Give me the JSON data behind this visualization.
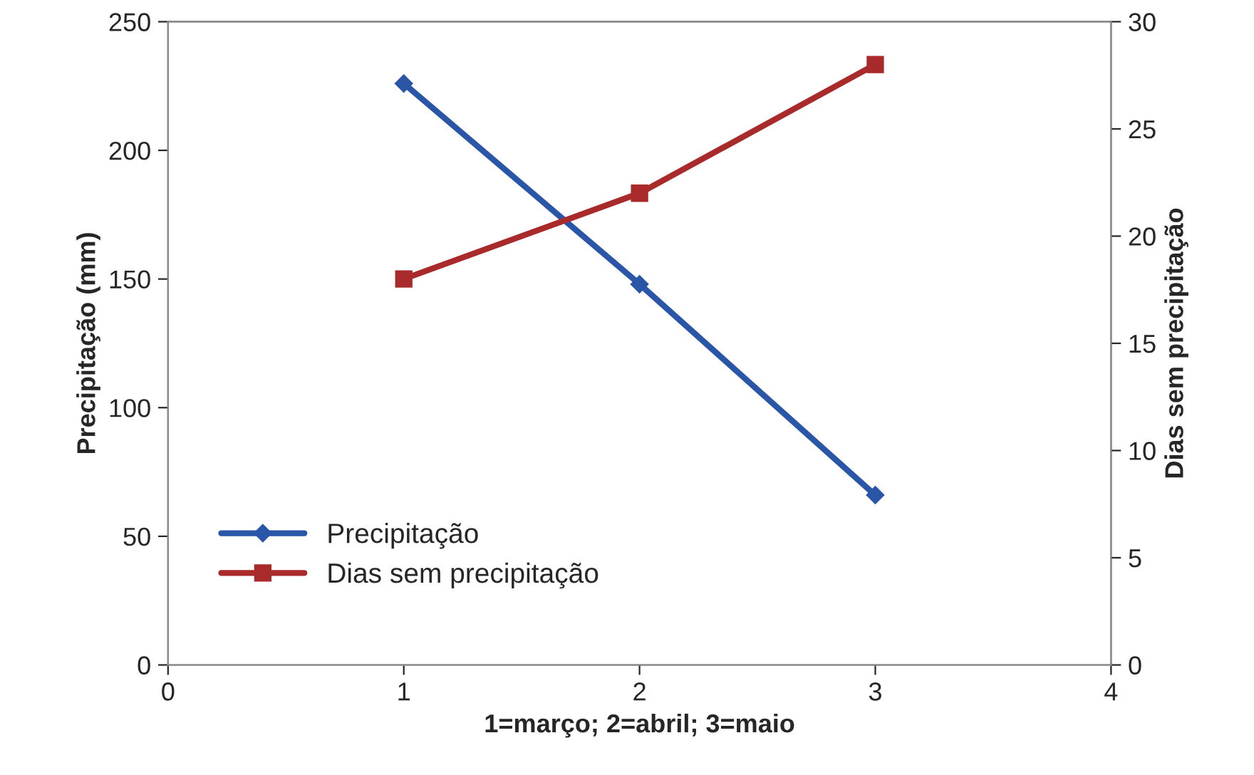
{
  "chart_data": {
    "type": "line",
    "xlabel": "1=março; 2=abril; 3=maio",
    "ylabel": "Precipitação (mm)",
    "y2label": "Dias sem precipitação",
    "x": [
      1,
      2,
      3
    ],
    "series": [
      {
        "name": "Precipitação",
        "color": "#2a56a8",
        "values": [
          226,
          148,
          66
        ],
        "marker": "diamond"
      },
      {
        "name": "Dias sem precipitação",
        "color": "#a82a2a",
        "values": [
          18,
          22,
          28
        ],
        "marker": "square",
        "axis": "y2"
      }
    ],
    "xlim": [
      0,
      4
    ],
    "xticks": [
      0,
      1,
      2,
      3,
      4
    ],
    "ylim": [
      0,
      250
    ],
    "yticks": [
      0,
      50,
      100,
      150,
      200,
      250
    ],
    "y2lim": [
      0,
      30
    ],
    "y2ticks": [
      0,
      5,
      10,
      15,
      20,
      25,
      30
    ],
    "grid": false,
    "legend": "bottom left",
    "line_style": "solid"
  }
}
